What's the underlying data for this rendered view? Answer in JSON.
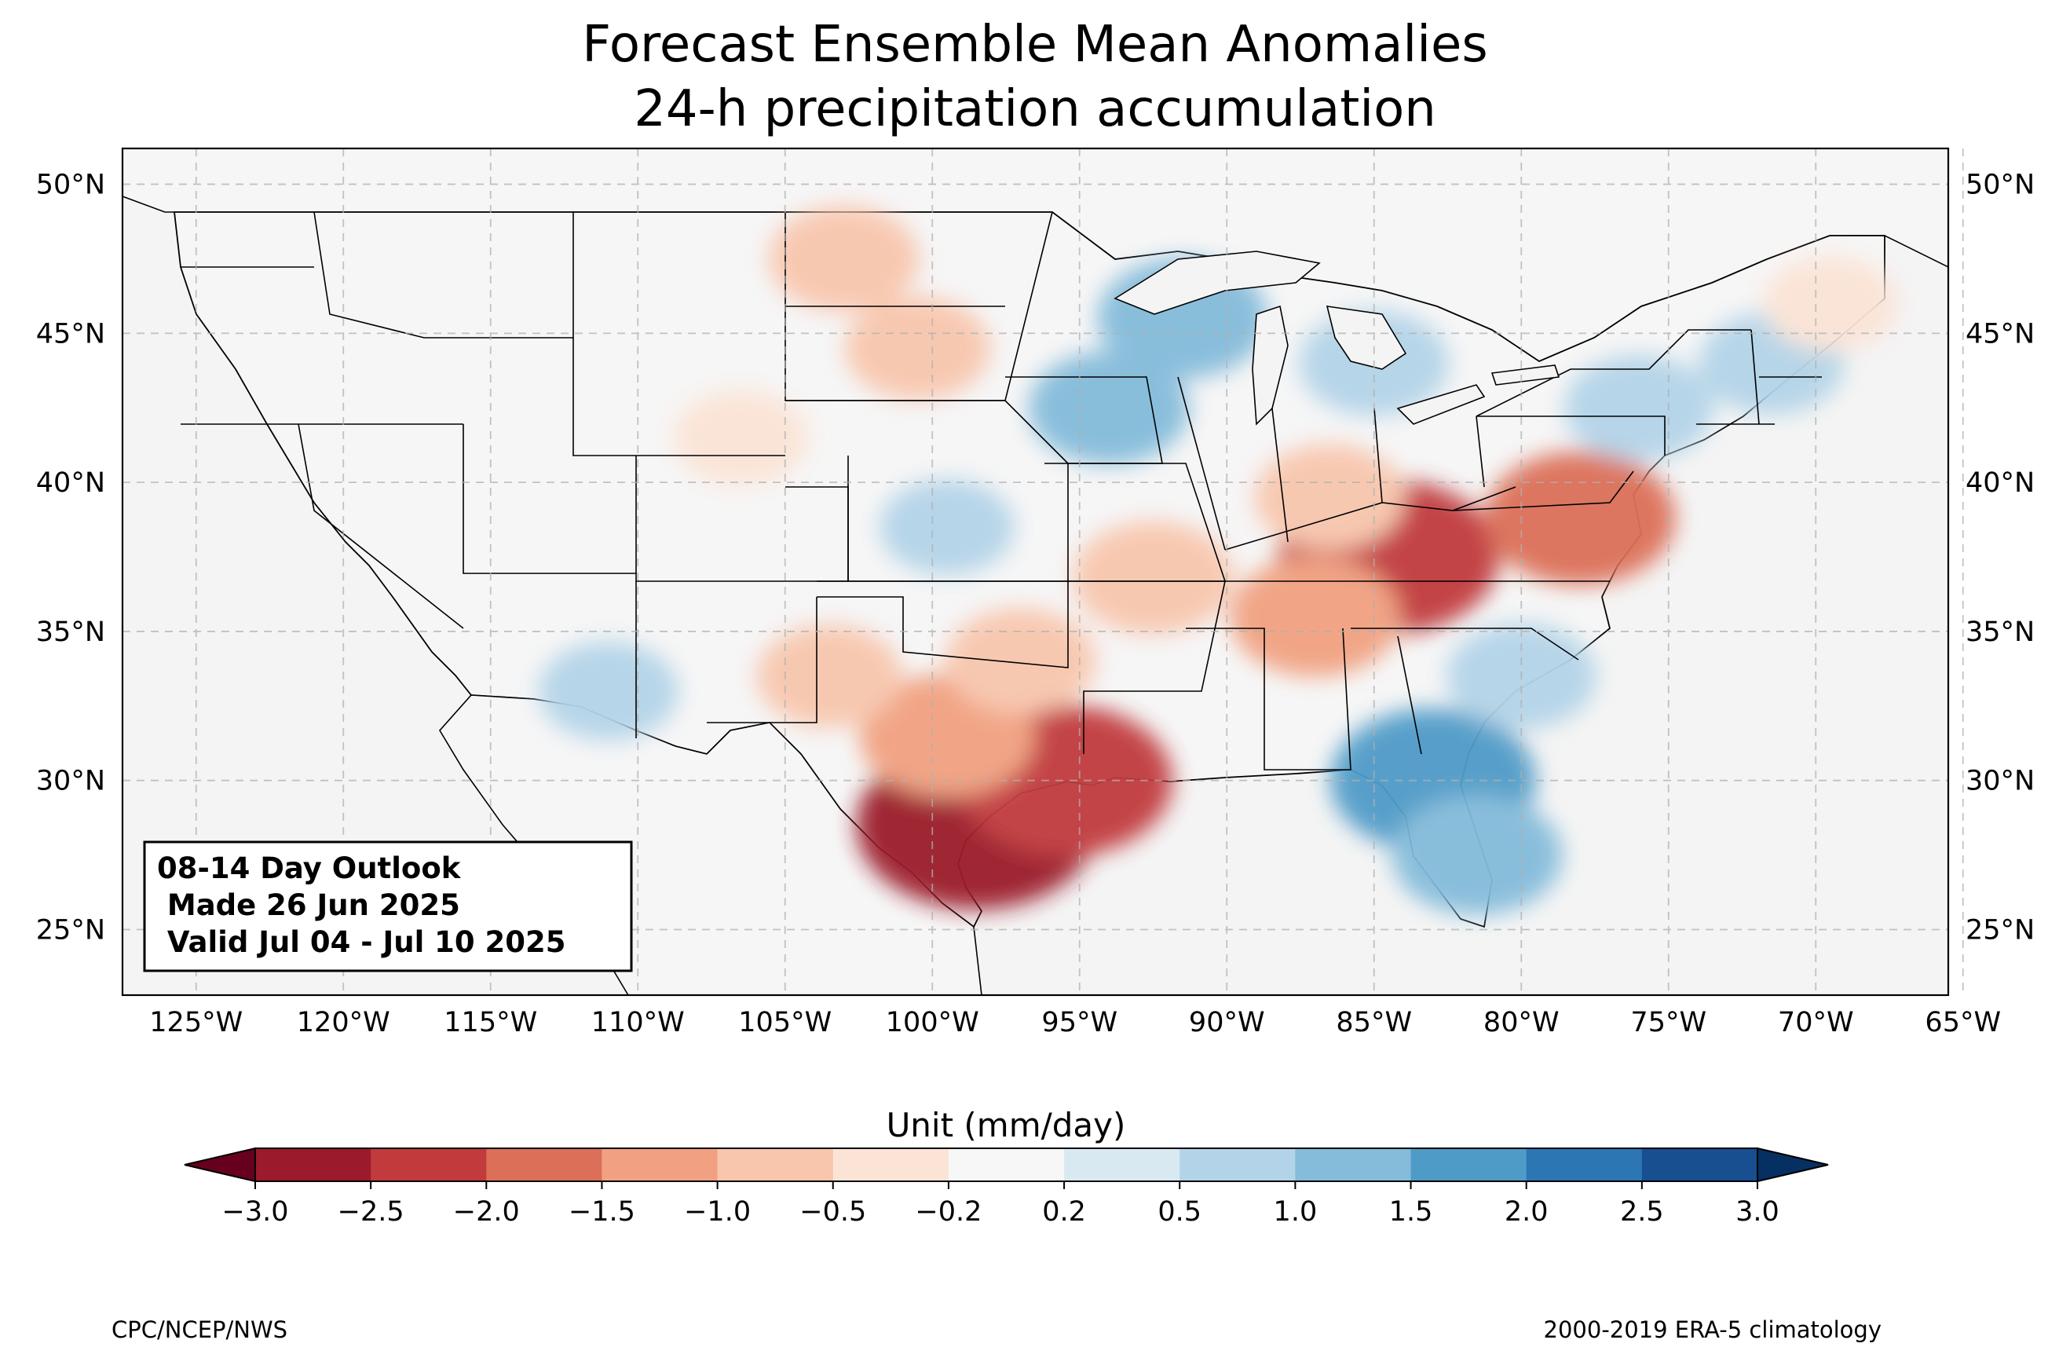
{
  "title": {
    "line1": "Forecast Ensemble Mean Anomalies",
    "line2": "24-h precipitation accumulation"
  },
  "map": {
    "extent": {
      "lon": [
        -127.5,
        -65.5
      ],
      "lat": [
        22.8,
        51.2
      ]
    },
    "lat_ticks": [
      "50°N",
      "45°N",
      "40°N",
      "35°N",
      "30°N",
      "25°N"
    ],
    "lat_values": [
      50,
      45,
      40,
      35,
      30,
      25
    ],
    "lon_ticks": [
      "125°W",
      "120°W",
      "115°W",
      "110°W",
      "105°W",
      "100°W",
      "95°W",
      "90°W",
      "85°W",
      "80°W",
      "75°W",
      "70°W",
      "65°W"
    ],
    "lon_values": [
      -125,
      -120,
      -115,
      -110,
      -105,
      -100,
      -95,
      -90,
      -85,
      -80,
      -75,
      -70,
      -65
    ],
    "gridlines": true
  },
  "outlook_box": {
    "line1": "08-14 Day Outlook",
    "line2": " Made 26 Jun 2025",
    "line3": " Valid Jul 04 - Jul 10 2025"
  },
  "colorbar": {
    "label": "Unit (mm/day)",
    "ticks": [
      "−3.0",
      "−2.5",
      "−2.0",
      "−1.5",
      "−1.0",
      "−0.5",
      "−0.2",
      "0.2",
      "0.5",
      "1.0",
      "1.5",
      "2.0",
      "2.5",
      "3.0"
    ],
    "colors": [
      "#67001f",
      "#9b1a2c",
      "#c13b3c",
      "#dc6f58",
      "#f1a181",
      "#f8c6ad",
      "#fbe4d6",
      "#f7f7f7",
      "#d9e9f2",
      "#b3d4e8",
      "#84bcda",
      "#4f9bc8",
      "#2c76b4",
      "#174f91",
      "#053061"
    ]
  },
  "anomaly_regions": [
    {
      "name": "south-texas",
      "lon": -98.5,
      "lat": 28.5,
      "value": -2.6
    },
    {
      "name": "texas-coast",
      "lon": -95.5,
      "lat": 30.0,
      "value": -2.1
    },
    {
      "name": "central-texas",
      "lon": -99.5,
      "lat": 31.5,
      "value": -1.3
    },
    {
      "name": "north-texas-oklahoma",
      "lon": -97.0,
      "lat": 34.0,
      "value": -0.8
    },
    {
      "name": "new-mexico-texas-border",
      "lon": -103.5,
      "lat": 33.5,
      "value": -0.7
    },
    {
      "name": "kentucky",
      "lon": -84.5,
      "lat": 37.5,
      "value": -2.2
    },
    {
      "name": "virginia-maryland",
      "lon": -78.0,
      "lat": 38.8,
      "value": -1.6
    },
    {
      "name": "tennessee-valley",
      "lon": -87.0,
      "lat": 35.5,
      "value": -1.2
    },
    {
      "name": "missouri-arkansas",
      "lon": -92.5,
      "lat": 36.8,
      "value": -1.0
    },
    {
      "name": "indiana-ohio",
      "lon": -86.5,
      "lat": 39.5,
      "value": -0.8
    },
    {
      "name": "montana-dakotas",
      "lon": -103.0,
      "lat": 47.5,
      "value": -0.8
    },
    {
      "name": "south-dakota",
      "lon": -100.5,
      "lat": 44.5,
      "value": -0.7
    },
    {
      "name": "colorado-wyoming",
      "lon": -106.5,
      "lat": 41.5,
      "value": -0.5
    },
    {
      "name": "georgia-florida",
      "lon": -83.0,
      "lat": 30.0,
      "value": 1.9
    },
    {
      "name": "florida-peninsula",
      "lon": -81.5,
      "lat": 27.5,
      "value": 1.2
    },
    {
      "name": "carolinas",
      "lon": -80.0,
      "lat": 33.5,
      "value": 0.8
    },
    {
      "name": "minnesota-wisconsin",
      "lon": -91.5,
      "lat": 45.5,
      "value": 1.2
    },
    {
      "name": "iowa",
      "lon": -94.0,
      "lat": 42.5,
      "value": 1.0
    },
    {
      "name": "michigan",
      "lon": -85.0,
      "lat": 44.0,
      "value": 0.8
    },
    {
      "name": "new-york-pennsylvania",
      "lon": -76.0,
      "lat": 42.5,
      "value": 0.8
    },
    {
      "name": "new-england",
      "lon": -71.5,
      "lat": 44.0,
      "value": 0.7
    },
    {
      "name": "arizona",
      "lon": -111.0,
      "lat": 33.0,
      "value": 0.6
    },
    {
      "name": "kansas",
      "lon": -99.5,
      "lat": 38.5,
      "value": 0.5
    },
    {
      "name": "maine",
      "lon": -69.5,
      "lat": 46.0,
      "value": -0.5
    }
  ],
  "footer": {
    "left": "CPC/NCEP/NWS",
    "right": "2000-2019 ERA-5 climatology"
  }
}
